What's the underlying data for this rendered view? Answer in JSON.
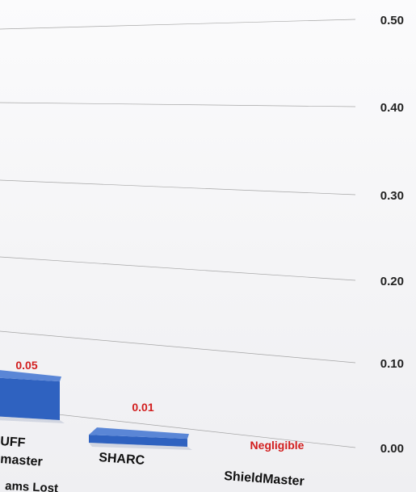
{
  "chart_data": {
    "type": "bar",
    "title": "",
    "xlabel": "Teams Lost",
    "ylabel": "",
    "ylim": [
      0,
      0.5
    ],
    "yticks": [
      "0.00",
      "0.10",
      "0.20",
      "0.30",
      "0.40",
      "0.50"
    ],
    "grid": true,
    "categories": [
      "GUFF Gamemaster",
      "SHARC",
      "ShieldMaster"
    ],
    "category_labels_visible": [
      "UFF\nmaster",
      "SHARC",
      "ShieldMaster"
    ],
    "values": [
      0.05,
      0.01,
      0.0
    ],
    "data_labels": [
      "0.05",
      "0.01",
      "Negligible"
    ],
    "xlabel_visible": "ams Lost",
    "colors": {
      "bar": "#2f62c0",
      "bar_top": "#5a86d6",
      "label": "#d21e1e",
      "grid": "#8a8a8a"
    }
  }
}
